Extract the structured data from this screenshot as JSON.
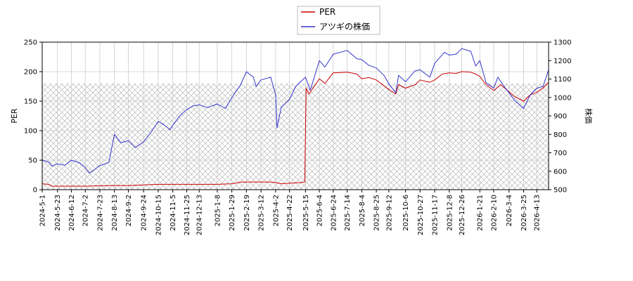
{
  "chart_data": {
    "type": "line",
    "title": "",
    "xlabel": "",
    "ylabel_left": "PER",
    "ylabel_right": "株価",
    "ylim_left": [
      0,
      250
    ],
    "ylim_right": [
      500,
      1300
    ],
    "yticks_left": [
      "0",
      "50",
      "100",
      "150",
      "200",
      "250"
    ],
    "yticks_right": [
      "500",
      "600",
      "700",
      "800",
      "900",
      "1000",
      "1100",
      "1200",
      "1300"
    ],
    "xlim": [
      "2024-05-01",
      "2026-04-30"
    ],
    "x_ticks": [
      "2024-5-1",
      "2024-5-23",
      "2024-6-12",
      "2024-7-2",
      "2024-7-23",
      "2024-8-13",
      "2024-9-2",
      "2024-9-24",
      "2024-10-15",
      "2024-11-5",
      "2024-11-25",
      "2024-12-13",
      "2025-1-8",
      "2025-1-29",
      "2025-2-19",
      "2025-3-12",
      "2025-4-2",
      "2025-4-22",
      "2025-5-15",
      "2025-6-4",
      "2025-6-24",
      "2025-7-14",
      "2025-8-4",
      "2025-8-25",
      "2025-9-12",
      "2025-10-6",
      "2025-10-27",
      "2025-11-17",
      "2025-12-8",
      "2025-12-26",
      "2026-1-21",
      "2026-2-10",
      "2026-3-4",
      "2026-3-25",
      "2026-4-13"
    ],
    "grid": true,
    "legend_position": "top-center",
    "hatch_band_left_ylim": [
      0,
      180
    ],
    "series": [
      {
        "name": "PER",
        "axis": "left",
        "color": "#cc0000",
        "points": [
          [
            "2024-05-01",
            10
          ],
          [
            "2024-05-10",
            9
          ],
          [
            "2024-05-15",
            6
          ],
          [
            "2024-06-12",
            6
          ],
          [
            "2024-07-02",
            6
          ],
          [
            "2024-07-23",
            6.5
          ],
          [
            "2024-08-13",
            7
          ],
          [
            "2024-09-02",
            7
          ],
          [
            "2024-09-24",
            8
          ],
          [
            "2024-10-15",
            9
          ],
          [
            "2024-11-05",
            9
          ],
          [
            "2024-11-25",
            9
          ],
          [
            "2024-12-13",
            9
          ],
          [
            "2025-01-08",
            9
          ],
          [
            "2025-01-29",
            10
          ],
          [
            "2025-02-12",
            13
          ],
          [
            "2025-03-05",
            13
          ],
          [
            "2025-03-26",
            13
          ],
          [
            "2025-04-02",
            12
          ],
          [
            "2025-04-10",
            10
          ],
          [
            "2025-04-22",
            11
          ],
          [
            "2025-05-08",
            12
          ],
          [
            "2025-05-14",
            13
          ],
          [
            "2025-05-16",
            172
          ],
          [
            "2025-05-20",
            162
          ],
          [
            "2025-06-04",
            188
          ],
          [
            "2025-06-12",
            180
          ],
          [
            "2025-06-24",
            198
          ],
          [
            "2025-07-14",
            199
          ],
          [
            "2025-07-28",
            196
          ],
          [
            "2025-08-04",
            188
          ],
          [
            "2025-08-14",
            190
          ],
          [
            "2025-08-25",
            186
          ],
          [
            "2025-09-05",
            176
          ],
          [
            "2025-09-12",
            170
          ],
          [
            "2025-09-22",
            162
          ],
          [
            "2025-09-26",
            178
          ],
          [
            "2025-10-06",
            172
          ],
          [
            "2025-10-20",
            178
          ],
          [
            "2025-10-27",
            186
          ],
          [
            "2025-11-10",
            182
          ],
          [
            "2025-11-17",
            186
          ],
          [
            "2025-11-28",
            196
          ],
          [
            "2025-12-08",
            198
          ],
          [
            "2025-12-18",
            197
          ],
          [
            "2025-12-26",
            200
          ],
          [
            "2026-01-08",
            199
          ],
          [
            "2026-01-15",
            196
          ],
          [
            "2026-01-21",
            192
          ],
          [
            "2026-01-30",
            178
          ],
          [
            "2026-02-10",
            168
          ],
          [
            "2026-02-20",
            178
          ],
          [
            "2026-03-04",
            166
          ],
          [
            "2026-03-12",
            158
          ],
          [
            "2026-03-25",
            150
          ],
          [
            "2026-04-03",
            160
          ],
          [
            "2026-04-13",
            165
          ],
          [
            "2026-04-22",
            172
          ],
          [
            "2026-04-30",
            182
          ]
        ]
      },
      {
        "name": "アツギの株価",
        "axis": "right",
        "color": "#3333cc",
        "points": [
          [
            "2024-05-01",
            660
          ],
          [
            "2024-05-10",
            650
          ],
          [
            "2024-05-15",
            628
          ],
          [
            "2024-05-23",
            640
          ],
          [
            "2024-06-03",
            632
          ],
          [
            "2024-06-12",
            660
          ],
          [
            "2024-06-24",
            645
          ],
          [
            "2024-07-02",
            620
          ],
          [
            "2024-07-08",
            590
          ],
          [
            "2024-07-23",
            630
          ],
          [
            "2024-08-05",
            648
          ],
          [
            "2024-08-13",
            800
          ],
          [
            "2024-08-22",
            755
          ],
          [
            "2024-09-02",
            765
          ],
          [
            "2024-09-12",
            728
          ],
          [
            "2024-09-24",
            760
          ],
          [
            "2024-10-04",
            808
          ],
          [
            "2024-10-15",
            870
          ],
          [
            "2024-10-25",
            848
          ],
          [
            "2024-11-01",
            825
          ],
          [
            "2024-11-05",
            850
          ],
          [
            "2024-11-15",
            900
          ],
          [
            "2024-11-25",
            935
          ],
          [
            "2024-12-05",
            955
          ],
          [
            "2024-12-13",
            960
          ],
          [
            "2024-12-25",
            945
          ],
          [
            "2025-01-08",
            965
          ],
          [
            "2025-01-20",
            940
          ],
          [
            "2025-01-29",
            1000
          ],
          [
            "2025-02-10",
            1065
          ],
          [
            "2025-02-19",
            1140
          ],
          [
            "2025-03-01",
            1110
          ],
          [
            "2025-03-05",
            1060
          ],
          [
            "2025-03-12",
            1095
          ],
          [
            "2025-03-26",
            1110
          ],
          [
            "2025-04-02",
            1015
          ],
          [
            "2025-04-04",
            835
          ],
          [
            "2025-04-10",
            945
          ],
          [
            "2025-04-22",
            990
          ],
          [
            "2025-05-01",
            1060
          ],
          [
            "2025-05-15",
            1110
          ],
          [
            "2025-05-22",
            1040
          ],
          [
            "2025-06-04",
            1200
          ],
          [
            "2025-06-12",
            1165
          ],
          [
            "2025-06-24",
            1235
          ],
          [
            "2025-07-14",
            1255
          ],
          [
            "2025-07-28",
            1210
          ],
          [
            "2025-08-04",
            1205
          ],
          [
            "2025-08-14",
            1175
          ],
          [
            "2025-08-25",
            1160
          ],
          [
            "2025-09-05",
            1120
          ],
          [
            "2025-09-12",
            1075
          ],
          [
            "2025-09-22",
            1025
          ],
          [
            "2025-09-26",
            1120
          ],
          [
            "2025-10-06",
            1085
          ],
          [
            "2025-10-20",
            1145
          ],
          [
            "2025-10-27",
            1150
          ],
          [
            "2025-11-10",
            1110
          ],
          [
            "2025-11-17",
            1185
          ],
          [
            "2025-12-01",
            1245
          ],
          [
            "2025-12-08",
            1230
          ],
          [
            "2025-12-18",
            1235
          ],
          [
            "2025-12-26",
            1265
          ],
          [
            "2026-01-08",
            1250
          ],
          [
            "2026-01-15",
            1170
          ],
          [
            "2026-01-21",
            1200
          ],
          [
            "2026-01-30",
            1080
          ],
          [
            "2026-02-10",
            1050
          ],
          [
            "2026-02-16",
            1110
          ],
          [
            "2026-02-25",
            1060
          ],
          [
            "2026-03-04",
            1025
          ],
          [
            "2026-03-12",
            985
          ],
          [
            "2026-03-25",
            940
          ],
          [
            "2026-04-03",
            1010
          ],
          [
            "2026-04-13",
            1050
          ],
          [
            "2026-04-22",
            1060
          ],
          [
            "2026-04-30",
            1150
          ]
        ]
      }
    ]
  },
  "legend": {
    "items": [
      {
        "label": "PER",
        "color": "#cc0000"
      },
      {
        "label": "アツギの株価",
        "color": "#3333cc"
      }
    ]
  }
}
